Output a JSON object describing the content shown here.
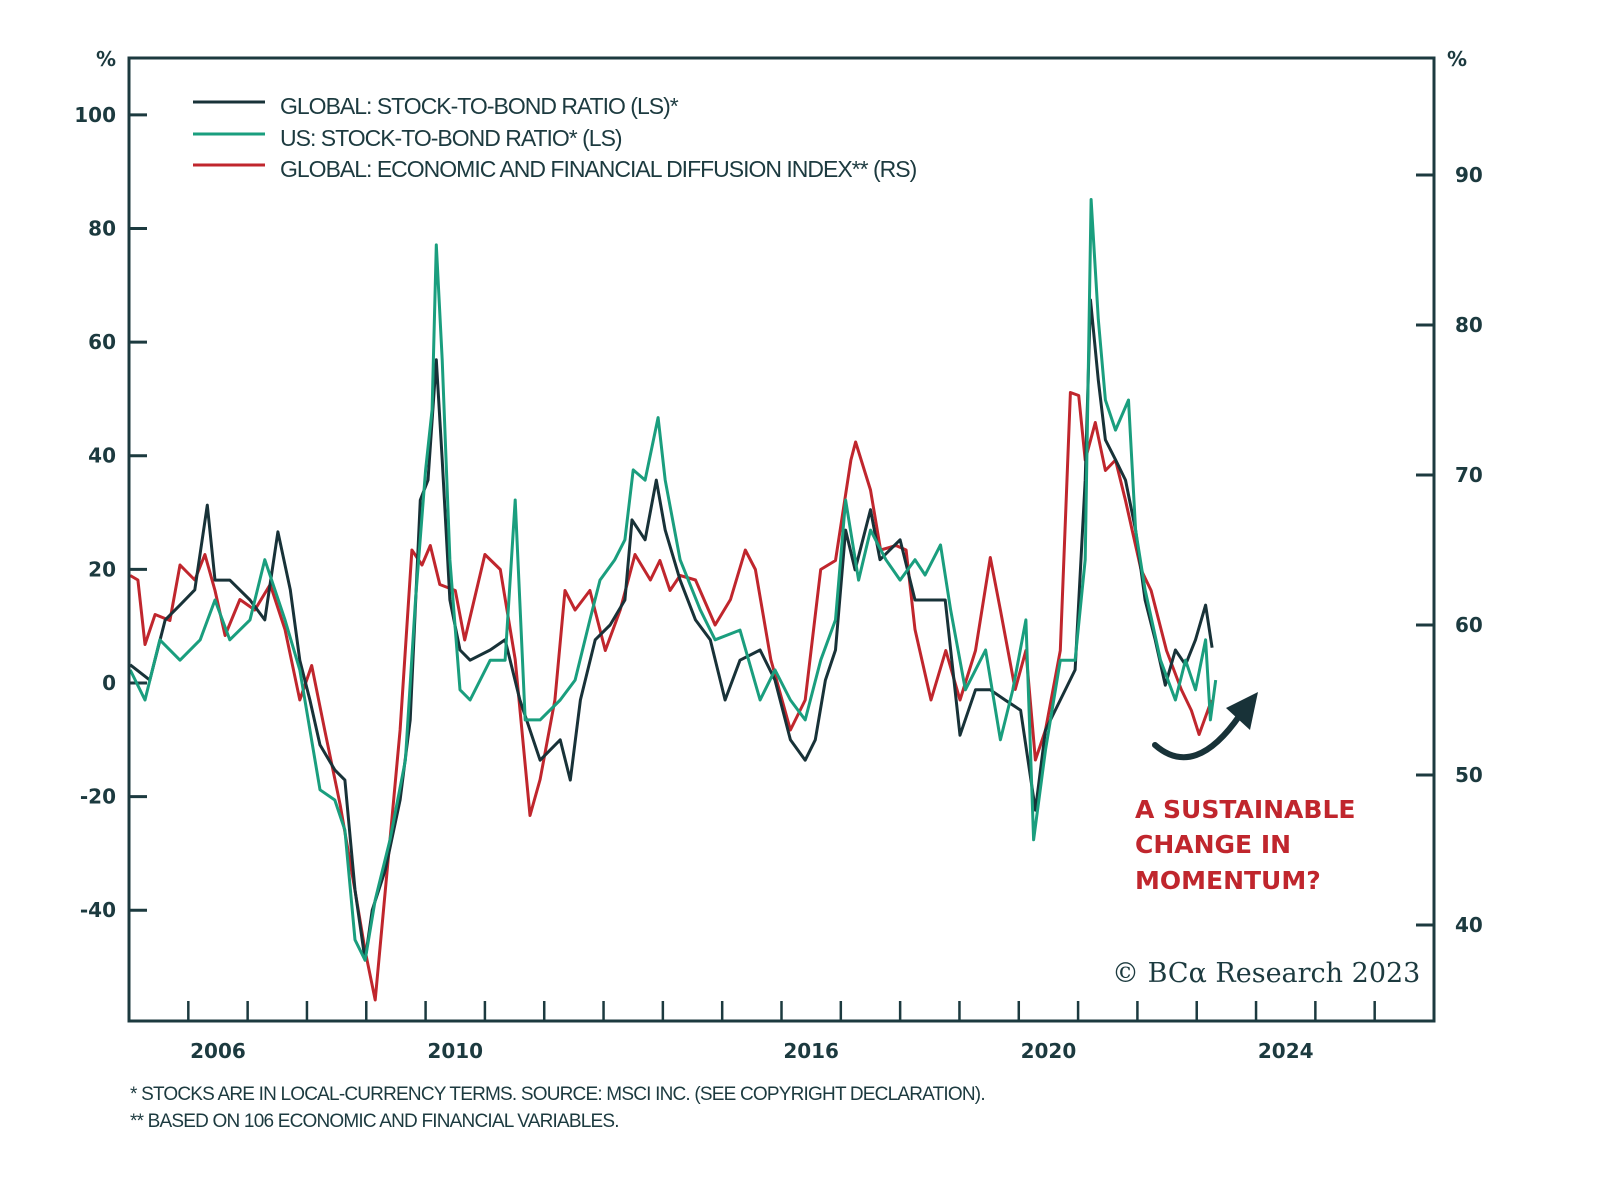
{
  "chart_data": {
    "type": "line",
    "title": "",
    "xlabel": "",
    "ylabel_left": "%",
    "ylabel_right": "%",
    "xlim": [
      2005,
      2027
    ],
    "ylim_left": [
      -59.5,
      110
    ],
    "ylim_right": [
      33.6,
      97.8
    ],
    "yticks_left": [
      100,
      80,
      60,
      40,
      20,
      0,
      -20,
      -40
    ],
    "yticks_right": [
      90,
      80,
      70,
      60,
      50,
      40
    ],
    "xtick_labels": [
      "2006",
      "2010",
      "2016",
      "2020",
      "2024"
    ],
    "legend": {
      "placement": "top-left",
      "entries": [
        "GLOBAL: STOCK-TO-BOND RATIO (LS)*",
        "US: STOCK-TO-BOND RATIO* (LS)",
        "GLOBAL: ECONOMIC AND FINANCIAL DIFFUSION INDEX** (RS)"
      ]
    },
    "series": [
      {
        "name": "GLOBAL: STOCK-TO-BOND RATIO (LS)*",
        "axis": "left",
        "color": "#183238",
        "points": [
          [
            2005.02,
            3.2
          ],
          [
            2005.35,
            0.5
          ],
          [
            2005.61,
            11.1
          ],
          [
            2005.86,
            13.7
          ],
          [
            2006.11,
            16.4
          ],
          [
            2006.32,
            31.3
          ],
          [
            2006.45,
            18.1
          ],
          [
            2006.7,
            18.1
          ],
          [
            2007.04,
            14.6
          ],
          [
            2007.29,
            11.1
          ],
          [
            2007.51,
            26.6
          ],
          [
            2007.72,
            16.4
          ],
          [
            2007.88,
            4.0
          ],
          [
            2008.05,
            -3.0
          ],
          [
            2008.22,
            -10.9
          ],
          [
            2008.47,
            -15.3
          ],
          [
            2008.64,
            -17.1
          ],
          [
            2008.81,
            -36.4
          ],
          [
            2008.98,
            -48.8
          ],
          [
            2009.1,
            -40.0
          ],
          [
            2009.32,
            -32.9
          ],
          [
            2009.57,
            -20.6
          ],
          [
            2009.74,
            -6.5
          ],
          [
            2009.91,
            32.2
          ],
          [
            2010.04,
            35.7
          ],
          [
            2010.18,
            56.9
          ],
          [
            2010.28,
            39.3
          ],
          [
            2010.41,
            14.6
          ],
          [
            2010.58,
            5.8
          ],
          [
            2010.75,
            4.0
          ],
          [
            2011.09,
            5.8
          ],
          [
            2011.34,
            7.6
          ],
          [
            2011.59,
            -3.0
          ],
          [
            2011.93,
            -13.6
          ],
          [
            2012.27,
            -10.0
          ],
          [
            2012.44,
            -17.1
          ],
          [
            2012.61,
            -3.0
          ],
          [
            2012.86,
            7.6
          ],
          [
            2013.11,
            10.2
          ],
          [
            2013.36,
            14.6
          ],
          [
            2013.48,
            28.7
          ],
          [
            2013.7,
            25.2
          ],
          [
            2013.89,
            35.7
          ],
          [
            2014.04,
            26.9
          ],
          [
            2014.29,
            18.1
          ],
          [
            2014.55,
            11.1
          ],
          [
            2014.8,
            7.6
          ],
          [
            2015.05,
            -3.0
          ],
          [
            2015.3,
            4.0
          ],
          [
            2015.64,
            5.8
          ],
          [
            2015.89,
            0.5
          ],
          [
            2016.15,
            -10.0
          ],
          [
            2016.4,
            -13.6
          ],
          [
            2016.57,
            -10.0
          ],
          [
            2016.74,
            0.5
          ],
          [
            2016.91,
            5.8
          ],
          [
            2017.08,
            26.9
          ],
          [
            2017.24,
            19.9
          ],
          [
            2017.5,
            30.5
          ],
          [
            2017.66,
            21.7
          ],
          [
            2018.0,
            25.2
          ],
          [
            2018.25,
            14.6
          ],
          [
            2018.59,
            14.6
          ],
          [
            2018.76,
            14.6
          ],
          [
            2019.01,
            -9.2
          ],
          [
            2019.27,
            -1.2
          ],
          [
            2019.52,
            -1.2
          ],
          [
            2019.77,
            -3.0
          ],
          [
            2020.03,
            -4.8
          ],
          [
            2020.28,
            -22.4
          ],
          [
            2020.45,
            -8.3
          ],
          [
            2020.7,
            -3.0
          ],
          [
            2020.95,
            2.3
          ],
          [
            2021.12,
            35.7
          ],
          [
            2021.21,
            67.4
          ],
          [
            2021.34,
            53.3
          ],
          [
            2021.46,
            42.8
          ],
          [
            2021.63,
            39.3
          ],
          [
            2021.8,
            35.7
          ],
          [
            2021.97,
            26.9
          ],
          [
            2022.13,
            14.6
          ],
          [
            2022.3,
            7.6
          ],
          [
            2022.47,
            -0.4
          ],
          [
            2022.64,
            5.8
          ],
          [
            2022.81,
            3.2
          ],
          [
            2022.98,
            7.6
          ],
          [
            2023.15,
            13.7
          ],
          [
            2023.26,
            6.2
          ]
        ]
      },
      {
        "name": "US: STOCK-TO-BOND RATIO* (LS)",
        "axis": "left",
        "color": "#1a9e7e",
        "points": [
          [
            2005.02,
            2.3
          ],
          [
            2005.27,
            -3.0
          ],
          [
            2005.52,
            7.6
          ],
          [
            2005.86,
            4.0
          ],
          [
            2006.2,
            7.6
          ],
          [
            2006.45,
            14.6
          ],
          [
            2006.7,
            7.6
          ],
          [
            2007.04,
            11.1
          ],
          [
            2007.29,
            21.7
          ],
          [
            2007.63,
            11.1
          ],
          [
            2007.88,
            2.3
          ],
          [
            2008.22,
            -18.8
          ],
          [
            2008.47,
            -20.6
          ],
          [
            2008.64,
            -25.9
          ],
          [
            2008.81,
            -45.2
          ],
          [
            2008.98,
            -48.8
          ],
          [
            2009.15,
            -38.2
          ],
          [
            2009.4,
            -27.6
          ],
          [
            2009.66,
            -13.6
          ],
          [
            2009.83,
            14.6
          ],
          [
            2010.0,
            37.5
          ],
          [
            2010.11,
            48.1
          ],
          [
            2010.18,
            77.1
          ],
          [
            2010.28,
            56.9
          ],
          [
            2010.41,
            21.7
          ],
          [
            2010.58,
            -1.2
          ],
          [
            2010.75,
            -3.0
          ],
          [
            2011.09,
            4.0
          ],
          [
            2011.34,
            4.0
          ],
          [
            2011.51,
            32.2
          ],
          [
            2011.68,
            -6.5
          ],
          [
            2011.93,
            -6.5
          ],
          [
            2012.27,
            -3.0
          ],
          [
            2012.52,
            0.5
          ],
          [
            2012.77,
            11.1
          ],
          [
            2012.94,
            18.1
          ],
          [
            2013.19,
            21.7
          ],
          [
            2013.36,
            25.2
          ],
          [
            2013.5,
            37.5
          ],
          [
            2013.7,
            35.7
          ],
          [
            2013.92,
            46.7
          ],
          [
            2014.04,
            35.7
          ],
          [
            2014.29,
            21.7
          ],
          [
            2014.63,
            12.9
          ],
          [
            2014.88,
            7.6
          ],
          [
            2015.3,
            9.3
          ],
          [
            2015.64,
            -3.0
          ],
          [
            2015.89,
            2.3
          ],
          [
            2016.15,
            -3.0
          ],
          [
            2016.4,
            -6.5
          ],
          [
            2016.66,
            4.0
          ],
          [
            2016.91,
            11.1
          ],
          [
            2017.08,
            32.2
          ],
          [
            2017.3,
            18.1
          ],
          [
            2017.5,
            26.9
          ],
          [
            2017.76,
            21.7
          ],
          [
            2018.0,
            18.1
          ],
          [
            2018.25,
            21.7
          ],
          [
            2018.42,
            19.0
          ],
          [
            2018.68,
            24.3
          ],
          [
            2018.85,
            12.9
          ],
          [
            2019.1,
            -1.2
          ],
          [
            2019.44,
            5.8
          ],
          [
            2019.69,
            -10.0
          ],
          [
            2019.9,
            -1.2
          ],
          [
            2020.12,
            11.1
          ],
          [
            2020.25,
            -27.6
          ],
          [
            2020.45,
            -11.8
          ],
          [
            2020.7,
            4.0
          ],
          [
            2020.95,
            4.0
          ],
          [
            2021.12,
            21.7
          ],
          [
            2021.22,
            85.1
          ],
          [
            2021.34,
            64.0
          ],
          [
            2021.46,
            49.8
          ],
          [
            2021.63,
            44.5
          ],
          [
            2021.85,
            49.8
          ],
          [
            2021.97,
            26.9
          ],
          [
            2022.13,
            16.4
          ],
          [
            2022.39,
            4.0
          ],
          [
            2022.64,
            -3.0
          ],
          [
            2022.81,
            4.0
          ],
          [
            2022.98,
            -1.2
          ],
          [
            2023.15,
            7.6
          ],
          [
            2023.23,
            -6.5
          ],
          [
            2023.32,
            0.5
          ]
        ]
      },
      {
        "name": "GLOBAL: ECONOMIC AND FINANCIAL DIFFUSION INDEX** (RS)",
        "axis": "right",
        "color": "#c0262d",
        "points": [
          [
            2005.02,
            63.3
          ],
          [
            2005.15,
            63.0
          ],
          [
            2005.27,
            58.7
          ],
          [
            2005.44,
            60.7
          ],
          [
            2005.69,
            60.3
          ],
          [
            2005.86,
            64.0
          ],
          [
            2006.11,
            63.0
          ],
          [
            2006.28,
            64.7
          ],
          [
            2006.45,
            62.3
          ],
          [
            2006.62,
            59.3
          ],
          [
            2006.87,
            61.7
          ],
          [
            2007.12,
            61.0
          ],
          [
            2007.38,
            62.7
          ],
          [
            2007.63,
            59.7
          ],
          [
            2007.88,
            55.0
          ],
          [
            2008.08,
            57.3
          ],
          [
            2008.3,
            53.0
          ],
          [
            2008.56,
            48.0
          ],
          [
            2008.81,
            42.3
          ],
          [
            2008.98,
            38.3
          ],
          [
            2009.15,
            35.0
          ],
          [
            2009.32,
            42.3
          ],
          [
            2009.57,
            53.0
          ],
          [
            2009.77,
            65.0
          ],
          [
            2009.94,
            64.0
          ],
          [
            2010.08,
            65.3
          ],
          [
            2010.24,
            62.7
          ],
          [
            2010.5,
            62.3
          ],
          [
            2010.66,
            59.0
          ],
          [
            2011.0,
            64.7
          ],
          [
            2011.26,
            63.7
          ],
          [
            2011.51,
            57.7
          ],
          [
            2011.76,
            47.3
          ],
          [
            2011.93,
            49.7
          ],
          [
            2012.18,
            55.0
          ],
          [
            2012.35,
            62.3
          ],
          [
            2012.52,
            61.0
          ],
          [
            2012.77,
            62.3
          ],
          [
            2013.03,
            58.3
          ],
          [
            2013.28,
            61.0
          ],
          [
            2013.53,
            64.7
          ],
          [
            2013.79,
            63.0
          ],
          [
            2013.95,
            64.3
          ],
          [
            2014.12,
            62.3
          ],
          [
            2014.29,
            63.3
          ],
          [
            2014.55,
            63.0
          ],
          [
            2014.88,
            60.0
          ],
          [
            2015.14,
            61.7
          ],
          [
            2015.39,
            65.0
          ],
          [
            2015.56,
            63.7
          ],
          [
            2015.82,
            57.7
          ],
          [
            2016.15,
            53.0
          ],
          [
            2016.4,
            55.0
          ],
          [
            2016.66,
            63.7
          ],
          [
            2016.91,
            64.3
          ],
          [
            2017.17,
            71.0
          ],
          [
            2017.25,
            72.2
          ],
          [
            2017.5,
            69.0
          ],
          [
            2017.67,
            65.0
          ],
          [
            2017.93,
            65.3
          ],
          [
            2018.1,
            65.0
          ],
          [
            2018.25,
            59.7
          ],
          [
            2018.52,
            55.0
          ],
          [
            2018.77,
            58.3
          ],
          [
            2019.01,
            55.0
          ],
          [
            2019.27,
            58.3
          ],
          [
            2019.52,
            64.5
          ],
          [
            2019.69,
            61.0
          ],
          [
            2019.94,
            55.7
          ],
          [
            2020.12,
            58.3
          ],
          [
            2020.28,
            51.0
          ],
          [
            2020.45,
            53.0
          ],
          [
            2020.7,
            58.3
          ],
          [
            2020.87,
            75.5
          ],
          [
            2021.01,
            75.3
          ],
          [
            2021.12,
            71.0
          ],
          [
            2021.29,
            73.5
          ],
          [
            2021.46,
            70.3
          ],
          [
            2021.63,
            71.0
          ],
          [
            2021.8,
            68.3
          ],
          [
            2022.06,
            63.7
          ],
          [
            2022.23,
            62.3
          ],
          [
            2022.49,
            58.3
          ],
          [
            2022.74,
            55.7
          ],
          [
            2022.91,
            54.3
          ],
          [
            2023.04,
            52.7
          ],
          [
            2023.25,
            55.0
          ]
        ]
      }
    ],
    "annotations": {
      "callout_lines": [
        "A SUSTAINABLE",
        "CHANGE IN",
        "MOMENTUM?"
      ],
      "arrow": "curved-up-arrow",
      "copyright": "© BCα Research 2023"
    },
    "footnotes": [
      "*  STOCKS ARE IN LOCAL-CURRENCY TERMS. SOURCE: MSCI INC. (SEE COPYRIGHT DECLARATION).",
      "** BASED ON 106 ECONOMIC AND FINANCIAL VARIABLES."
    ],
    "colors": {
      "axis": "#1c3a3f",
      "accent_red": "#c0262d"
    }
  }
}
